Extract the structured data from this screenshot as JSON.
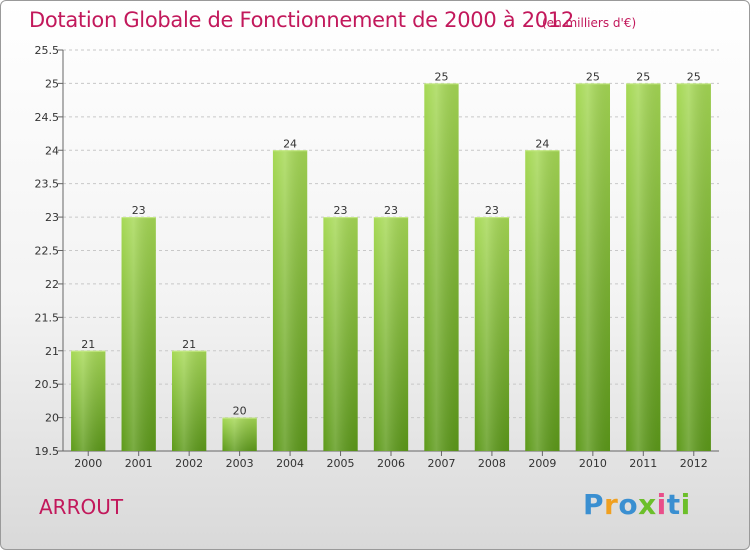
{
  "header": {
    "title": "Dotation Globale de Fonctionnement de 2000 à 2012",
    "subtitle": "(en milliers d'€)"
  },
  "footer": {
    "commune": "ARROUT",
    "logo_text": "Proxiti"
  },
  "chart_data": {
    "type": "bar",
    "title": "Dotation Globale de Fonctionnement de 2000 à 2012",
    "subtitle": "(en milliers d'€)",
    "categories": [
      "2000",
      "2001",
      "2002",
      "2003",
      "2004",
      "2005",
      "2006",
      "2007",
      "2008",
      "2009",
      "2010",
      "2011",
      "2012"
    ],
    "values": [
      21,
      23,
      21,
      20,
      24,
      23,
      23,
      25,
      23,
      24,
      25,
      25,
      25
    ],
    "data_labels": [
      "21",
      "23",
      "21",
      "20",
      "24",
      "23",
      "23",
      "25",
      "23",
      "24",
      "25",
      "25",
      "25"
    ],
    "xlabel": "",
    "ylabel": "",
    "ylim": [
      19.5,
      25.5
    ],
    "yticks": [
      "19.5",
      "20",
      "20.5",
      "21",
      "21.5",
      "22",
      "22.5",
      "23",
      "23.5",
      "24",
      "24.5",
      "25",
      "25.5"
    ],
    "grid": true,
    "bar_color": "#7dbb2e",
    "bar_color_light": "#a6d955",
    "bar_color_dark": "#5d9a1a",
    "grid_color": "#c8c8c8"
  }
}
